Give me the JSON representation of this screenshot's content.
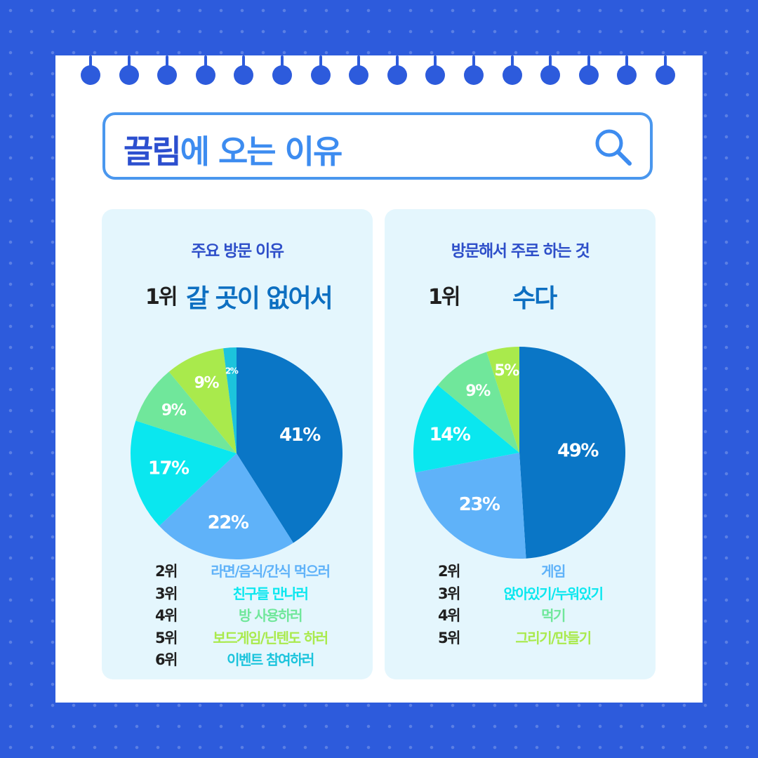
{
  "header": {
    "title_brand": "끌림",
    "title_rest": "에 오는 이유",
    "search_icon": "search-icon"
  },
  "colors": {
    "background": "#2d5bdc",
    "rank_2": "#5fb2f9",
    "rank_3": "#0ae7ef",
    "rank_4": "#70e79b",
    "rank_5": "#a9ea4c",
    "rank_6": "#1cc4dc",
    "top_slice": "#0a76c6"
  },
  "left_panel": {
    "title": "주요 방문 이유",
    "rank1_label": "1위",
    "rank1_value": "갈 곳이 없어서",
    "ranks": [
      {
        "rank": "2위",
        "label": "라면/음식/간식 먹으러"
      },
      {
        "rank": "3위",
        "label": "친구들 만나러"
      },
      {
        "rank": "4위",
        "label": "방 사용하러"
      },
      {
        "rank": "5위",
        "label": "보드게임/닌텐도 하러"
      },
      {
        "rank": "6위",
        "label": "이벤트 참여하러"
      }
    ]
  },
  "right_panel": {
    "title": "방문해서 주로 하는 것",
    "rank1_label": "1위",
    "rank1_value": "수다",
    "ranks": [
      {
        "rank": "2위",
        "label": "게임"
      },
      {
        "rank": "3위",
        "label": "앉아있기/누워있기"
      },
      {
        "rank": "4위",
        "label": "먹기"
      },
      {
        "rank": "5위",
        "label": "그리기/만들기"
      }
    ]
  },
  "chart_data": [
    {
      "type": "pie",
      "title": "주요 방문 이유",
      "categories": [
        "갈 곳이 없어서",
        "라면/음식/간식 먹으러",
        "친구들 만나러",
        "방 사용하러",
        "보드게임/닌텐도 하러",
        "이벤트 참여하러"
      ],
      "values": [
        41,
        22,
        17,
        9,
        9,
        2
      ],
      "labels": [
        "41%",
        "22%",
        "17%",
        "9%",
        "9%",
        "2%"
      ],
      "colors": [
        "#0a76c6",
        "#5fb2f9",
        "#0ae7ef",
        "#70e79b",
        "#a9ea4c",
        "#1cc4dc"
      ]
    },
    {
      "type": "pie",
      "title": "방문해서 주로 하는 것",
      "categories": [
        "수다",
        "게임",
        "앉아있기/누워있기",
        "먹기",
        "그리기/만들기"
      ],
      "values": [
        49,
        23,
        14,
        9,
        5
      ],
      "labels": [
        "49%",
        "23%",
        "14%",
        "9%",
        "5%"
      ],
      "colors": [
        "#0a76c6",
        "#5fb2f9",
        "#0ae7ef",
        "#70e79b",
        "#a9ea4c"
      ]
    }
  ]
}
